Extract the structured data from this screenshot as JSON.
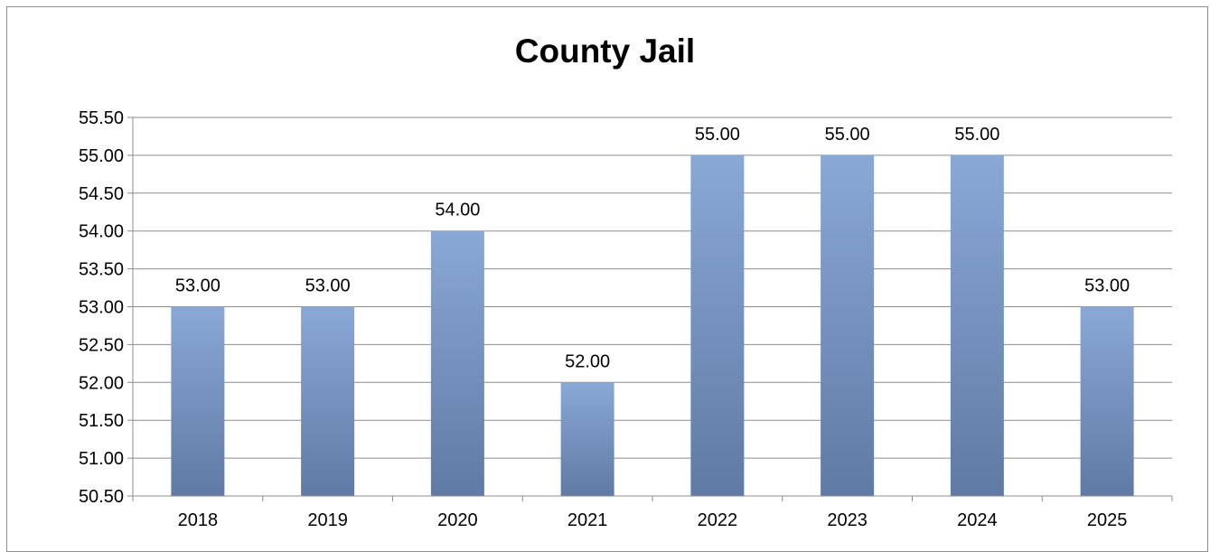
{
  "chart_data": {
    "type": "bar",
    "title": "County Jail",
    "categories": [
      "2018",
      "2019",
      "2020",
      "2021",
      "2022",
      "2023",
      "2024",
      "2025"
    ],
    "values": [
      53.0,
      53.0,
      54.0,
      52.0,
      55.0,
      55.0,
      55.0,
      53.0
    ],
    "value_labels": [
      "53.00",
      "53.00",
      "54.00",
      "52.00",
      "55.00",
      "55.00",
      "55.00",
      "53.00"
    ],
    "ylim": [
      50.5,
      55.5
    ],
    "yticks": [
      "50.50",
      "51.00",
      "51.50",
      "52.00",
      "52.50",
      "53.00",
      "53.50",
      "54.00",
      "54.50",
      "55.00",
      "55.50"
    ],
    "grid": true,
    "legend": "none",
    "bar_color_top": "#8aa8d6",
    "bar_color_bottom": "#5f7aa4"
  }
}
